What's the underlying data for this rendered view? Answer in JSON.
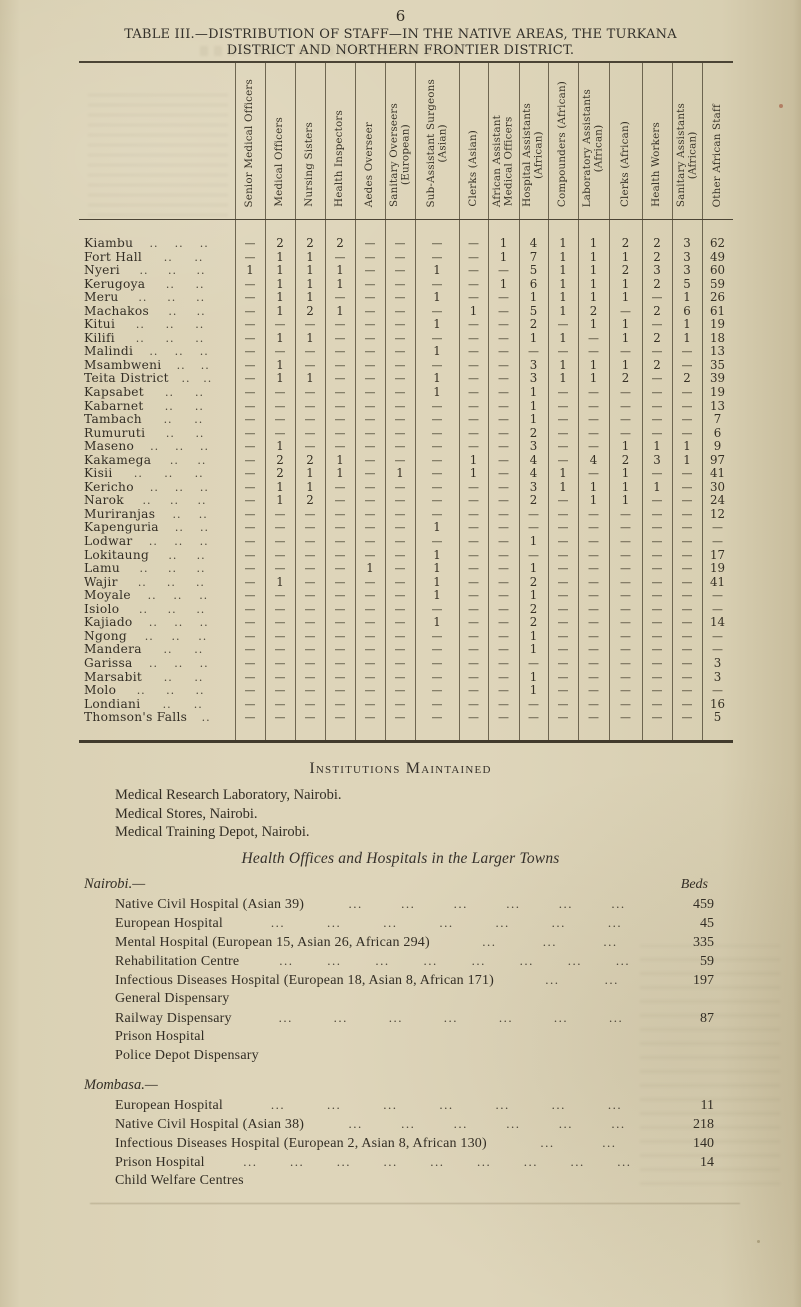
{
  "page": {
    "number": "6"
  },
  "title": {
    "line1": "TABLE III.—DISTRIBUTION OF STAFF—IN THE NATIVE AREAS, THE TURKANA",
    "line2": "DISTRICT AND NORTHERN FRONTIER DISTRICT."
  },
  "staff_table": {
    "empty_mark": "—",
    "columns": [
      "Senior Medical Officers",
      "Medical Officers",
      "Nursing Sisters",
      "Health Inspectors",
      "Aedes Overseer",
      "Sanitary Overseers\n(European)",
      "Sub-Assistant Surgeons\n(Asian)",
      "Clerks (Asian)",
      "African Assistant\nMedical Officers",
      "Hospital Assistants\n(African)",
      "Compounders (African)",
      "Laboratory Assistants\n(African)",
      "Clerks (African)",
      "Health Workers",
      "Sanitary Assistants\n(African)",
      "Other African Staff"
    ],
    "rows": [
      {
        "name": "Kiambu",
        "dots": 3,
        "values": [
          "—",
          "2",
          "2",
          "2",
          "—",
          "—",
          "—",
          "—",
          "1",
          "4",
          "1",
          "1",
          "2",
          "2",
          "3",
          "62"
        ]
      },
      {
        "name": "Fort Hall",
        "dots": 2,
        "values": [
          "—",
          "1",
          "1",
          "—",
          "—",
          "—",
          "—",
          "—",
          "1",
          "7",
          "1",
          "1",
          "1",
          "2",
          "3",
          "49"
        ]
      },
      {
        "name": "Nyeri",
        "dots": 3,
        "values": [
          "1",
          "1",
          "1",
          "1",
          "—",
          "—",
          "1",
          "—",
          "—",
          "5",
          "1",
          "1",
          "2",
          "3",
          "3",
          "60"
        ]
      },
      {
        "name": "Kerugoya",
        "dots": 2,
        "values": [
          "—",
          "1",
          "1",
          "1",
          "—",
          "—",
          "—",
          "—",
          "1",
          "6",
          "1",
          "1",
          "1",
          "2",
          "5",
          "59"
        ]
      },
      {
        "name": "Meru",
        "dots": 3,
        "values": [
          "—",
          "1",
          "1",
          "—",
          "—",
          "—",
          "1",
          "—",
          "—",
          "1",
          "1",
          "1",
          "1",
          "—",
          "1",
          "26"
        ]
      },
      {
        "name": "Machakos",
        "dots": 2,
        "values": [
          "—",
          "1",
          "2",
          "1",
          "—",
          "—",
          "—",
          "1",
          "—",
          "5",
          "1",
          "2",
          "—",
          "2",
          "6",
          "61"
        ]
      },
      {
        "name": "Kitui",
        "dots": 3,
        "values": [
          "—",
          "—",
          "—",
          "—",
          "—",
          "—",
          "1",
          "—",
          "—",
          "2",
          "—",
          "1",
          "1",
          "—",
          "1",
          "19"
        ]
      },
      {
        "name": "Kilifi",
        "dots": 3,
        "values": [
          "—",
          "1",
          "1",
          "—",
          "—",
          "—",
          "—",
          "—",
          "—",
          "1",
          "1",
          "—",
          "1",
          "2",
          "1",
          "18"
        ]
      },
      {
        "name": "Malindi",
        "dots": 3,
        "values": [
          "—",
          "—",
          "—",
          "—",
          "—",
          "—",
          "1",
          "—",
          "—",
          "—",
          "—",
          "—",
          "—",
          "—",
          "—",
          "13"
        ]
      },
      {
        "name": "Msambweni",
        "dots": 2,
        "values": [
          "—",
          "1",
          "—",
          "—",
          "—",
          "—",
          "—",
          "—",
          "—",
          "3",
          "1",
          "1",
          "1",
          "2",
          "—",
          "35"
        ]
      },
      {
        "name": "Teita District",
        "dots": 2,
        "values": [
          "—",
          "1",
          "1",
          "—",
          "—",
          "—",
          "1",
          "—",
          "—",
          "3",
          "1",
          "1",
          "2",
          "—",
          "2",
          "39"
        ]
      },
      {
        "name": "Kapsabet",
        "dots": 2,
        "values": [
          "—",
          "—",
          "—",
          "—",
          "—",
          "—",
          "1",
          "—",
          "—",
          "1",
          "—",
          "—",
          "—",
          "—",
          "—",
          "19"
        ]
      },
      {
        "name": "Kabarnet",
        "dots": 2,
        "values": [
          "—",
          "—",
          "—",
          "—",
          "—",
          "—",
          "—",
          "—",
          "—",
          "1",
          "—",
          "—",
          "—",
          "—",
          "—",
          "13"
        ]
      },
      {
        "name": "Tambach",
        "dots": 2,
        "values": [
          "—",
          "—",
          "—",
          "—",
          "—",
          "—",
          "—",
          "—",
          "—",
          "1",
          "—",
          "—",
          "—",
          "—",
          "—",
          "7"
        ]
      },
      {
        "name": "Rumuruti",
        "dots": 2,
        "values": [
          "—",
          "—",
          "—",
          "—",
          "—",
          "—",
          "—",
          "—",
          "—",
          "2",
          "—",
          "—",
          "—",
          "—",
          "—",
          "6"
        ]
      },
      {
        "name": "Maseno",
        "dots": 3,
        "values": [
          "—",
          "1",
          "—",
          "—",
          "—",
          "—",
          "—",
          "—",
          "—",
          "3",
          "—",
          "—",
          "1",
          "1",
          "1",
          "9"
        ]
      },
      {
        "name": "Kakamega",
        "dots": 2,
        "values": [
          "—",
          "2",
          "2",
          "1",
          "—",
          "—",
          "—",
          "1",
          "—",
          "4",
          "—",
          "4",
          "2",
          "3",
          "1",
          "97"
        ]
      },
      {
        "name": "Kisii",
        "dots": 3,
        "values": [
          "—",
          "2",
          "1",
          "1",
          "—",
          "1",
          "—",
          "1",
          "—",
          "4",
          "1",
          "—",
          "1",
          "—",
          "—",
          "41"
        ]
      },
      {
        "name": "Kericho",
        "dots": 3,
        "values": [
          "—",
          "1",
          "1",
          "—",
          "—",
          "—",
          "—",
          "—",
          "—",
          "3",
          "1",
          "1",
          "1",
          "1",
          "—",
          "30"
        ]
      },
      {
        "name": "Narok",
        "dots": 3,
        "values": [
          "—",
          "1",
          "2",
          "—",
          "—",
          "—",
          "—",
          "—",
          "—",
          "2",
          "—",
          "1",
          "1",
          "—",
          "—",
          "24"
        ]
      },
      {
        "name": "Muriranjas",
        "dots": 2,
        "values": [
          "—",
          "—",
          "—",
          "—",
          "—",
          "—",
          "—",
          "—",
          "—",
          "—",
          "—",
          "—",
          "—",
          "—",
          "—",
          "12"
        ]
      },
      {
        "name": "Kapenguria",
        "dots": 2,
        "values": [
          "—",
          "—",
          "—",
          "—",
          "—",
          "—",
          "1",
          "—",
          "—",
          "—",
          "—",
          "—",
          "—",
          "—",
          "—",
          "—"
        ]
      },
      {
        "name": "Lodwar",
        "dots": 3,
        "values": [
          "—",
          "—",
          "—",
          "—",
          "—",
          "—",
          "—",
          "—",
          "—",
          "1",
          "—",
          "—",
          "—",
          "—",
          "—",
          "—"
        ]
      },
      {
        "name": "Lokitaung",
        "dots": 2,
        "values": [
          "—",
          "—",
          "—",
          "—",
          "—",
          "—",
          "1",
          "—",
          "—",
          "—",
          "—",
          "—",
          "—",
          "—",
          "—",
          "17"
        ]
      },
      {
        "name": "Lamu",
        "dots": 3,
        "values": [
          "—",
          "—",
          "—",
          "—",
          "1",
          "—",
          "1",
          "—",
          "—",
          "1",
          "—",
          "—",
          "—",
          "—",
          "—",
          "19"
        ]
      },
      {
        "name": "Wajir",
        "dots": 3,
        "values": [
          "—",
          "1",
          "—",
          "—",
          "—",
          "—",
          "1",
          "—",
          "—",
          "2",
          "—",
          "—",
          "—",
          "—",
          "—",
          "41"
        ]
      },
      {
        "name": "Moyale",
        "dots": 3,
        "values": [
          "—",
          "—",
          "—",
          "—",
          "—",
          "—",
          "1",
          "—",
          "—",
          "1",
          "—",
          "—",
          "—",
          "—",
          "—",
          "—"
        ]
      },
      {
        "name": "Isiolo",
        "dots": 3,
        "values": [
          "—",
          "—",
          "—",
          "—",
          "—",
          "—",
          "—",
          "—",
          "—",
          "2",
          "—",
          "—",
          "—",
          "—",
          "—",
          "—"
        ]
      },
      {
        "name": "Kajiado",
        "dots": 3,
        "values": [
          "—",
          "—",
          "—",
          "—",
          "—",
          "—",
          "1",
          "—",
          "—",
          "2",
          "—",
          "—",
          "—",
          "—",
          "—",
          "14"
        ]
      },
      {
        "name": "Ngong",
        "dots": 3,
        "values": [
          "—",
          "—",
          "—",
          "—",
          "—",
          "—",
          "—",
          "—",
          "—",
          "1",
          "—",
          "—",
          "—",
          "—",
          "—",
          "—"
        ]
      },
      {
        "name": "Mandera",
        "dots": 2,
        "values": [
          "—",
          "—",
          "—",
          "—",
          "—",
          "—",
          "—",
          "—",
          "—",
          "1",
          "—",
          "—",
          "—",
          "—",
          "—",
          "—"
        ]
      },
      {
        "name": "Garissa",
        "dots": 3,
        "values": [
          "—",
          "—",
          "—",
          "—",
          "—",
          "—",
          "—",
          "—",
          "—",
          "—",
          "—",
          "—",
          "—",
          "—",
          "—",
          "3"
        ]
      },
      {
        "name": "Marsabit",
        "dots": 2,
        "values": [
          "—",
          "—",
          "—",
          "—",
          "—",
          "—",
          "—",
          "—",
          "—",
          "1",
          "—",
          "—",
          "—",
          "—",
          "—",
          "3"
        ]
      },
      {
        "name": "Molo",
        "dots": 3,
        "values": [
          "—",
          "—",
          "—",
          "—",
          "—",
          "—",
          "—",
          "—",
          "—",
          "1",
          "—",
          "—",
          "—",
          "—",
          "—",
          "—"
        ]
      },
      {
        "name": "Londiani",
        "dots": 2,
        "values": [
          "—",
          "—",
          "—",
          "—",
          "—",
          "—",
          "—",
          "—",
          "—",
          "—",
          "—",
          "—",
          "—",
          "—",
          "—",
          "16"
        ]
      },
      {
        "name": "Thomson's Falls",
        "dots": 1,
        "values": [
          "—",
          "—",
          "—",
          "—",
          "—",
          "—",
          "—",
          "—",
          "—",
          "—",
          "—",
          "—",
          "—",
          "—",
          "—",
          "5"
        ]
      }
    ]
  },
  "institutions": {
    "heading": "Institutions Maintained",
    "items": [
      "Medical Research Laboratory, Nairobi.",
      "Medical Stores, Nairobi.",
      "Medical Training Depot, Nairobi."
    ]
  },
  "larger_towns": {
    "heading": "Health Offices and Hospitals in the Larger Towns",
    "beds_label": "Beds",
    "sections": [
      {
        "name": "Nairobi.—",
        "items": [
          {
            "label": "Native Civil Hospital (Asian 39)",
            "dots": 6,
            "beds": "459"
          },
          {
            "label": "European Hospital",
            "dots": 7,
            "beds": "45"
          },
          {
            "label": "Mental Hospital (European 15, Asian 26, African 294)",
            "dots": 3,
            "beds": "335"
          },
          {
            "label": "Rehabilitation Centre",
            "dots": 8,
            "beds": "59"
          },
          {
            "label": "Infectious Diseases Hospital (European 18, Asian 8, African 171)",
            "dots": 2,
            "beds": "197"
          },
          {
            "label": "General Dispensary",
            "dots": 0,
            "beds": ""
          },
          {
            "label": "Railway Dispensary",
            "dots": 7,
            "beds": "87"
          },
          {
            "label": "Prison Hospital",
            "dots": 0,
            "beds": ""
          },
          {
            "label": "Police Depot Dispensary",
            "dots": 0,
            "beds": ""
          }
        ]
      },
      {
        "name": "Mombasa.—",
        "items": [
          {
            "label": "European Hospital",
            "dots": 7,
            "beds": "11"
          },
          {
            "label": "Native Civil Hospital (Asian 38)",
            "dots": 6,
            "beds": "218"
          },
          {
            "label": "Infectious Diseases Hospital (European 2, Asian 8, African 130)",
            "dots": 2,
            "beds": "140"
          },
          {
            "label": "Prison Hospital",
            "dots": 9,
            "beds": "14"
          },
          {
            "label": "Child Welfare Centres",
            "dots": 0,
            "beds": ""
          }
        ]
      }
    ]
  },
  "colors": {
    "paper": "#dbd2b6",
    "ink": "#332e25",
    "rule": "#4b4435"
  }
}
